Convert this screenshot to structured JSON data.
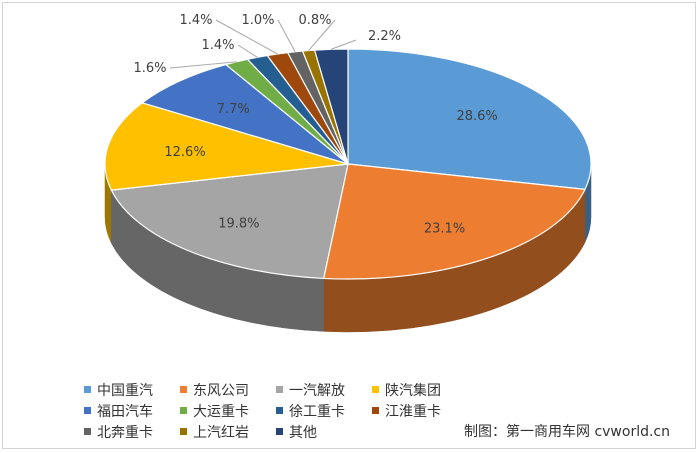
{
  "chart_data": {
    "type": "pie",
    "style": "3d",
    "categories": [
      "中国重汽",
      "东风公司",
      "一汽解放",
      "陕汽集团",
      "福田汽车",
      "大运重卡",
      "徐工重卡",
      "江淮重卡",
      "北奔重卡",
      "上汽红岩",
      "其他"
    ],
    "values": [
      28.6,
      23.1,
      19.8,
      12.6,
      7.7,
      1.6,
      1.4,
      1.4,
      1.0,
      0.8,
      2.2
    ],
    "data_labels": [
      "28.6%",
      "23.1%",
      "19.8%",
      "12.6%",
      "7.7%",
      "1.6%",
      "1.4%",
      "1.4%",
      "1.0%",
      "0.8%",
      "2.2%"
    ],
    "colors": [
      "#5B9BD5",
      "#ED7D31",
      "#A5A5A5",
      "#FFC000",
      "#4472C4",
      "#70AD47",
      "#255E91",
      "#9E480E",
      "#636363",
      "#997300",
      "#264478"
    ],
    "legend_placement": "bottom"
  },
  "credit": {
    "label": "制图：第一商用车网",
    "site": "cvworld.cn"
  }
}
